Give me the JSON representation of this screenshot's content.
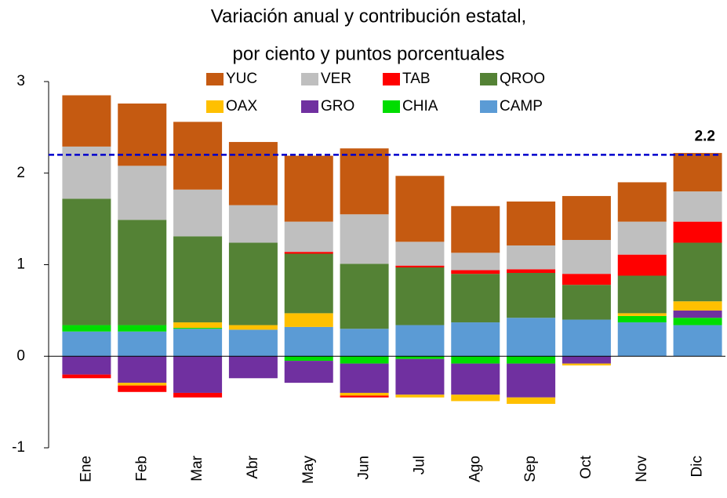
{
  "chart_data": {
    "type": "stacked_bar",
    "title": "Variación anual y contribución estatal,",
    "subtitle": "por ciento y puntos porcentuales",
    "categories": [
      "Ene",
      "Feb",
      "Mar",
      "Abr",
      "May",
      "Jun",
      "Jul",
      "Ago",
      "Sep",
      "Oct",
      "Nov",
      "Dic"
    ],
    "series": [
      {
        "name": "YUC",
        "color": "#c55a11",
        "values": [
          0.56,
          0.68,
          0.74,
          0.69,
          0.72,
          0.72,
          0.72,
          0.51,
          0.48,
          0.48,
          0.43,
          0.42
        ]
      },
      {
        "name": "VER",
        "color": "#bfbfbf",
        "values": [
          0.57,
          0.59,
          0.51,
          0.41,
          0.33,
          0.54,
          0.26,
          0.19,
          0.26,
          0.37,
          0.36,
          0.33
        ]
      },
      {
        "name": "TAB",
        "color": "#ff0000",
        "values": [
          -0.04,
          -0.07,
          -0.05,
          0,
          0.02,
          -0.02,
          0.02,
          0.04,
          0.04,
          0.12,
          0.23,
          0.23
        ]
      },
      {
        "name": "QROO",
        "color": "#548235",
        "values": [
          1.38,
          1.15,
          0.94,
          0.9,
          0.65,
          0.71,
          0.63,
          0.53,
          0.49,
          0.38,
          0.41,
          0.64
        ]
      },
      {
        "name": "OAX",
        "color": "#ffc000",
        "values": [
          0,
          -0.03,
          0.06,
          0.05,
          0.15,
          -0.03,
          -0.03,
          -0.07,
          -0.07,
          -0.02,
          0.03,
          0.1
        ]
      },
      {
        "name": "GRO",
        "color": "#7030a0",
        "values": [
          -0.2,
          -0.29,
          -0.4,
          -0.24,
          -0.24,
          -0.32,
          -0.39,
          -0.34,
          -0.37,
          -0.08,
          0,
          0.08
        ]
      },
      {
        "name": "CHIA",
        "color": "#00dd00",
        "values": [
          0.07,
          0.07,
          0.01,
          0,
          -0.05,
          -0.08,
          -0.03,
          -0.08,
          -0.08,
          0,
          0.07,
          0.08
        ]
      },
      {
        "name": "CAMP",
        "color": "#5b9bd5",
        "values": [
          0.27,
          0.27,
          0.3,
          0.29,
          0.32,
          0.3,
          0.34,
          0.37,
          0.42,
          0.4,
          0.37,
          0.34
        ]
      }
    ],
    "reference_line": {
      "value": 2.2,
      "color": "#0000cc"
    },
    "ylim": [
      -1,
      3
    ],
    "yticks": [
      -1,
      0,
      1,
      2,
      3
    ],
    "grid": false
  }
}
